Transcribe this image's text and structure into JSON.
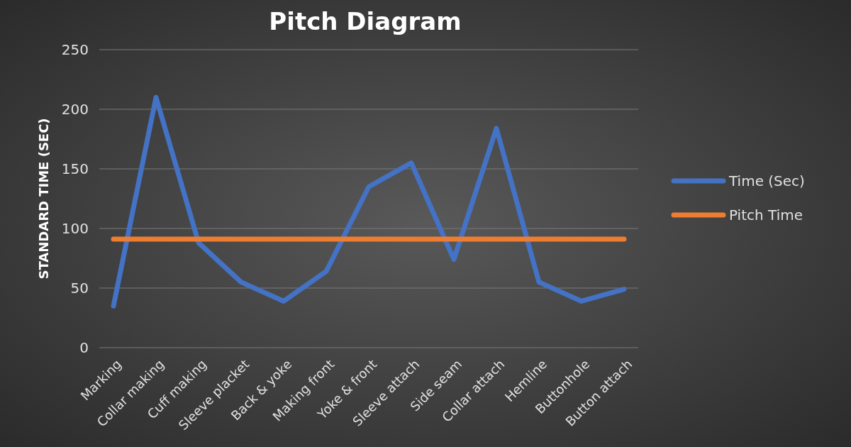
{
  "chart_data": {
    "type": "line",
    "title": "Pitch Diagram",
    "ylabel": "STANDARD TIME (SEC)",
    "categories": [
      "Marking",
      "Collar making",
      "Cuff making",
      "Sleeve placket",
      "Back & yoke",
      "Making front",
      "Yoke & front",
      "Sleeve attach",
      "Side seam",
      "Collar attach",
      "Hemline",
      "Buttonhole",
      "Button attach"
    ],
    "series": [
      {
        "name": "Time (Sec)",
        "color": "#4472c4",
        "values": [
          35,
          210,
          88,
          55,
          39,
          64,
          135,
          155,
          74,
          184,
          55,
          39,
          49
        ]
      },
      {
        "name": "Pitch Time",
        "color": "#ed7d31",
        "values": [
          91,
          91,
          91,
          91,
          91,
          91,
          91,
          91,
          91,
          91,
          91,
          91,
          91
        ]
      }
    ],
    "ylim": [
      0,
      250
    ],
    "yticks": [
      0,
      50,
      100,
      150,
      200,
      250
    ],
    "grid": "y",
    "legend": "right",
    "marker": "none",
    "line_style": "solid"
  }
}
